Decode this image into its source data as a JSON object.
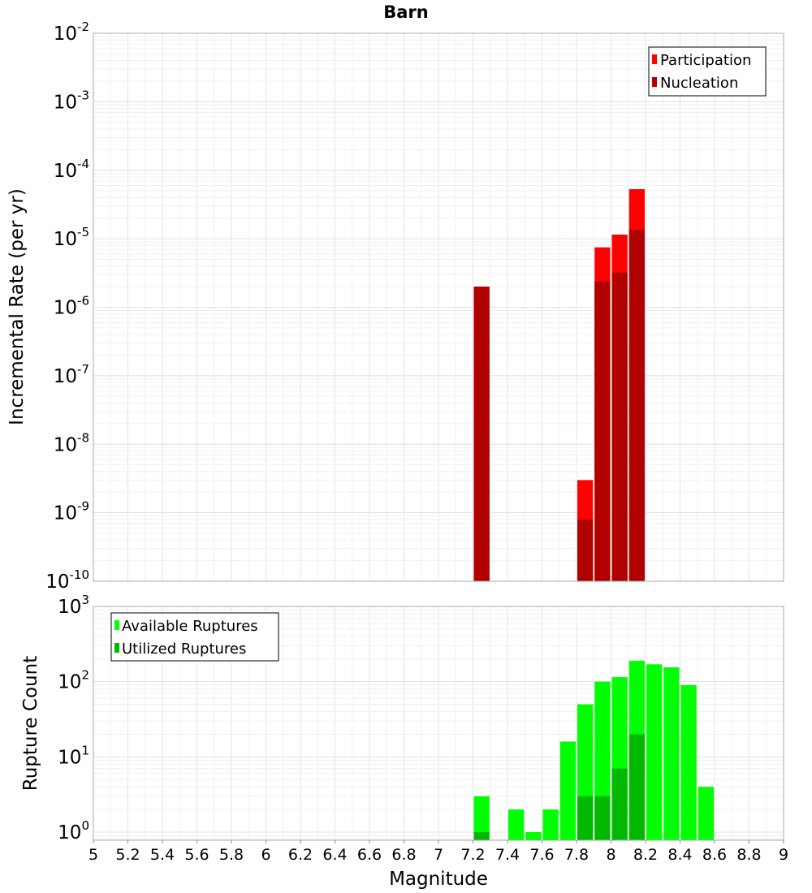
{
  "chart_data": [
    {
      "type": "bar",
      "title": "Barn",
      "xlabel": "",
      "ylabel": "Incremental Rate (per yr)",
      "yscale": "log",
      "ylim": [
        1e-10,
        0.01
      ],
      "xlim": [
        5,
        9
      ],
      "y_ticks": [
        {
          "base": "10",
          "exp": "-2"
        },
        {
          "base": "10",
          "exp": "-3"
        },
        {
          "base": "10",
          "exp": "-4"
        },
        {
          "base": "10",
          "exp": "-5"
        },
        {
          "base": "10",
          "exp": "-6"
        },
        {
          "base": "10",
          "exp": "-7"
        },
        {
          "base": "10",
          "exp": "-8"
        },
        {
          "base": "10",
          "exp": "-9"
        },
        {
          "base": "10",
          "exp": "-10"
        }
      ],
      "grid": true,
      "legend_position": "top-right",
      "series": [
        {
          "name": "Participation",
          "color": "#ff0000",
          "points": [
            [
              7.25,
              2e-06
            ],
            [
              7.85,
              3e-09
            ],
            [
              7.95,
              7.5e-06
            ],
            [
              8.05,
              1.15e-05
            ],
            [
              8.15,
              5.3e-05
            ]
          ]
        },
        {
          "name": "Nucleation",
          "color": "#b00000",
          "points": [
            [
              7.25,
              2e-06
            ],
            [
              7.85,
              8e-10
            ],
            [
              7.95,
              2.4e-06
            ],
            [
              8.05,
              3.2e-06
            ],
            [
              8.15,
              1.35e-05
            ]
          ]
        }
      ]
    },
    {
      "type": "bar",
      "title": "",
      "xlabel": "Magnitude",
      "ylabel": "Rupture Count",
      "yscale": "log",
      "ylim": [
        0.78,
        1000
      ],
      "xlim": [
        5,
        9
      ],
      "y_ticks": [
        {
          "base": "10",
          "exp": "3"
        },
        {
          "base": "10",
          "exp": "2"
        },
        {
          "base": "10",
          "exp": "1"
        },
        {
          "base": "10",
          "exp": "0"
        }
      ],
      "x_ticks": [
        "5",
        "5.2",
        "5.4",
        "5.6",
        "5.8",
        "6",
        "6.2",
        "6.4",
        "6.6",
        "6.8",
        "7",
        "7.2",
        "7.4",
        "7.6",
        "7.8",
        "8",
        "8.2",
        "8.4",
        "8.6",
        "8.8",
        "9"
      ],
      "grid": true,
      "legend_position": "top-left",
      "series": [
        {
          "name": "Available Ruptures",
          "color": "#00ff00",
          "points": [
            [
              7.25,
              3
            ],
            [
              7.45,
              2
            ],
            [
              7.55,
              1
            ],
            [
              7.65,
              2
            ],
            [
              7.75,
              16
            ],
            [
              7.85,
              50
            ],
            [
              7.95,
              100
            ],
            [
              8.05,
              115
            ],
            [
              8.15,
              190
            ],
            [
              8.25,
              170
            ],
            [
              8.35,
              155
            ],
            [
              8.45,
              90
            ],
            [
              8.55,
              4
            ]
          ]
        },
        {
          "name": "Utilized Ruptures",
          "color": "#00b800",
          "points": [
            [
              7.25,
              1
            ],
            [
              7.85,
              3
            ],
            [
              7.95,
              3
            ],
            [
              8.05,
              7
            ],
            [
              8.15,
              20
            ]
          ]
        }
      ]
    }
  ]
}
